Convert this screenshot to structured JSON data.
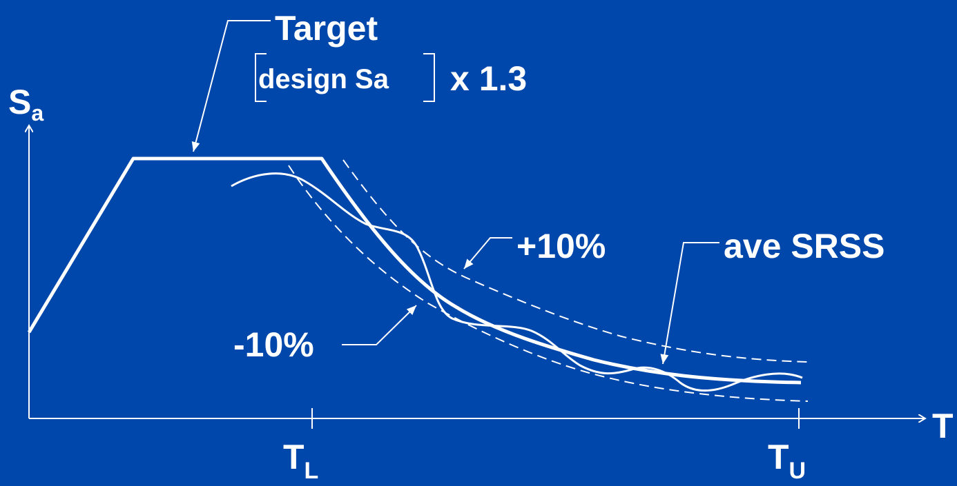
{
  "colors": {
    "background": "#0047ab",
    "ink": "#ffffff"
  },
  "labels": {
    "target": "Target",
    "design": "design Sa",
    "factor": "x 1.3",
    "plus": "+10%",
    "minus": "-10%",
    "ave": "ave SRSS"
  },
  "axes": {
    "y_main": "S",
    "y_sub": "a",
    "x": "T",
    "tl_main": "T",
    "tl_sub": "L",
    "tu_main": "T",
    "tu_sub": "U"
  }
}
